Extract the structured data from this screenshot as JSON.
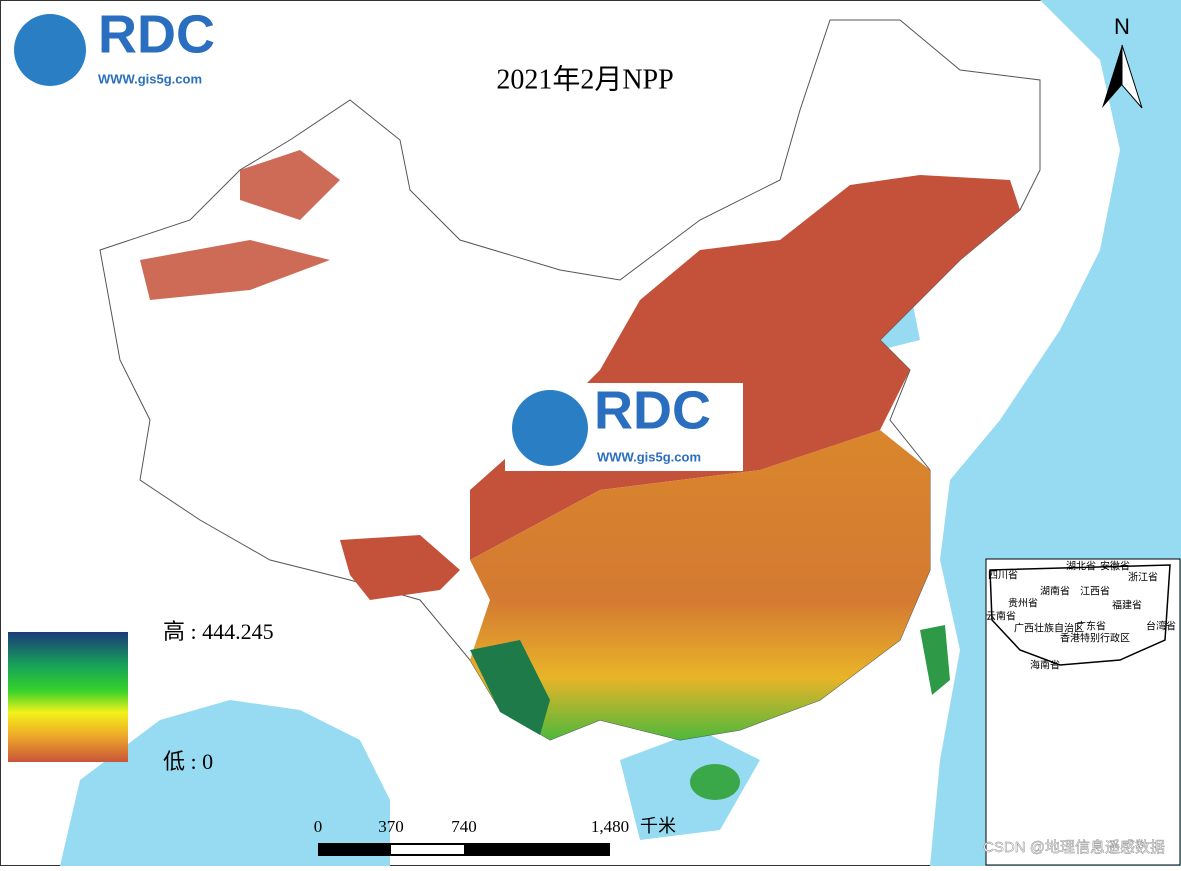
{
  "title": "2021年2月NPP",
  "logo": {
    "brand": "RDC",
    "url": "WWW.gis5g.com"
  },
  "north_arrow": "N",
  "legend": {
    "high": "高 : 444.245",
    "low": "低 : 0"
  },
  "scale_bar": {
    "labels": [
      "0",
      "370",
      "740",
      "1,480"
    ],
    "unit": "千米"
  },
  "inset": {
    "labels": [
      "四川省",
      "湖北省",
      "安徽省",
      "浙江省",
      "贵州省",
      "湖南省",
      "江西省",
      "福建省",
      "云南省",
      "广西壮族自治区",
      "广东省",
      "香港特别行政区",
      "台湾省",
      "海南省"
    ]
  },
  "watermark": "CSDN @地理信息遥感数据"
}
